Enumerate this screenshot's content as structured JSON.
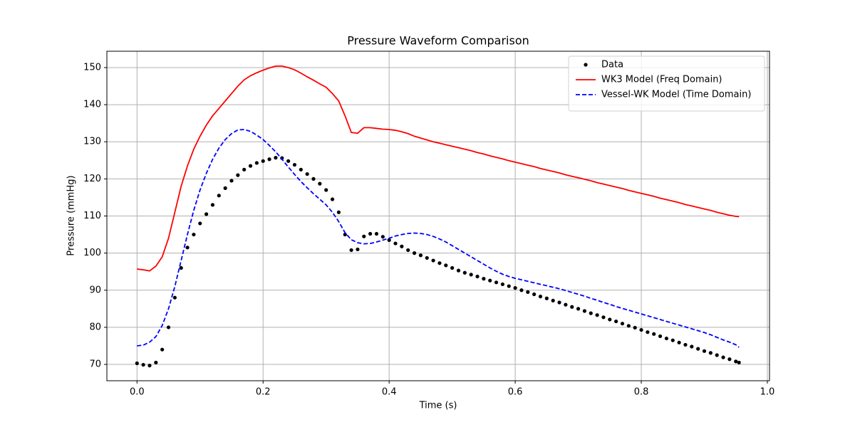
{
  "chart_data": {
    "type": "line",
    "title": "Pressure Waveform Comparison",
    "x_label": "Time (s)",
    "y_label": "Pressure (mmHg)",
    "xlim": [
      -0.0478,
      1.0034
    ],
    "ylim": [
      65.6,
      154.4
    ],
    "xticks": [
      {
        "value": 0,
        "label": "0.0"
      },
      0.2,
      0.4,
      0.6,
      0.8,
      {
        "value": 1,
        "label": "1.0"
      }
    ],
    "yticks": [
      70,
      80,
      90,
      100,
      110,
      120,
      130,
      140,
      150
    ],
    "grid": true,
    "legend": "upper right",
    "x": [
      0,
      0.01,
      0.02,
      0.03,
      0.04,
      0.05,
      0.06,
      0.07,
      0.08,
      0.09,
      0.1,
      0.11,
      0.12,
      0.13,
      0.14,
      0.15,
      0.16,
      0.17,
      0.18,
      0.19,
      0.2,
      0.21,
      0.22,
      0.23,
      0.24,
      0.25,
      0.26,
      0.27,
      0.28,
      0.29,
      0.3,
      0.31,
      0.32,
      0.33,
      0.34,
      0.35,
      0.36,
      0.37,
      0.38,
      0.39,
      0.4,
      0.41,
      0.42,
      0.43,
      0.44,
      0.45,
      0.46,
      0.47,
      0.48,
      0.49,
      0.5,
      0.51,
      0.52,
      0.53,
      0.54,
      0.55,
      0.56,
      0.57,
      0.58,
      0.59,
      0.6,
      0.61,
      0.62,
      0.63,
      0.64,
      0.65,
      0.66,
      0.67,
      0.68,
      0.69,
      0.7,
      0.71,
      0.72,
      0.73,
      0.74,
      0.75,
      0.76,
      0.77,
      0.78,
      0.79,
      0.8,
      0.81,
      0.82,
      0.83,
      0.84,
      0.85,
      0.86,
      0.87,
      0.88,
      0.89,
      0.9,
      0.91,
      0.92,
      0.93,
      0.94,
      0.95,
      0.955
    ],
    "series": [
      {
        "name": "Data",
        "color": "#000000",
        "linestyle": "none",
        "marker": "circle",
        "values": [
          70.3,
          69.9,
          69.7,
          70.5,
          74,
          80,
          88,
          96,
          101.5,
          105,
          108,
          110.5,
          113,
          115.5,
          117.5,
          119.5,
          121,
          122.5,
          123.5,
          124.3,
          124.8,
          125.3,
          125.7,
          125.6,
          124.8,
          123.8,
          122.5,
          121.3,
          120,
          118.7,
          117,
          114.5,
          111,
          105,
          100.8,
          101,
          104.5,
          105.2,
          105.2,
          104.4,
          103.5,
          102.6,
          101.8,
          100.8,
          100,
          99.4,
          98.7,
          98,
          97.3,
          96.7,
          96,
          95.3,
          94.7,
          94.2,
          93.7,
          93.1,
          92.6,
          92.1,
          91.6,
          91.1,
          90.6,
          90,
          89.5,
          88.9,
          88.3,
          87.8,
          87.2,
          86.7,
          86.1,
          85.5,
          85,
          84.4,
          83.8,
          83.3,
          82.7,
          82.1,
          81.6,
          81,
          80.4,
          79.9,
          79.3,
          78.7,
          78.2,
          77.6,
          77,
          76.5,
          75.9,
          75.3,
          74.8,
          74.2,
          73.6,
          73.1,
          72.5,
          71.9,
          71.4,
          70.8,
          70.5
        ]
      },
      {
        "name": "WK3 Model (Freq Domain)",
        "color": "#ff0000",
        "linestyle": "solid",
        "marker": "none",
        "values": [
          95.7,
          95.5,
          95.2,
          96.5,
          99,
          104,
          111,
          118,
          123.5,
          128,
          131.5,
          134.5,
          137,
          139,
          141,
          143,
          145,
          146.7,
          147.8,
          148.6,
          149.3,
          149.9,
          150.4,
          150.4,
          150,
          149.4,
          148.5,
          147.5,
          146.6,
          145.6,
          144.7,
          143,
          141,
          137,
          132.5,
          132.3,
          133.8,
          133.8,
          133.6,
          133.4,
          133.3,
          133.1,
          132.7,
          132.2,
          131.5,
          131,
          130.5,
          130,
          129.6,
          129.2,
          128.8,
          128.4,
          128,
          127.6,
          127.1,
          126.7,
          126.2,
          125.8,
          125.4,
          124.9,
          124.5,
          124.1,
          123.7,
          123.3,
          122.8,
          122.4,
          122,
          121.6,
          121.1,
          120.7,
          120.3,
          119.9,
          119.5,
          119,
          118.6,
          118.2,
          117.8,
          117.4,
          116.9,
          116.5,
          116.1,
          115.7,
          115.3,
          114.8,
          114.4,
          114,
          113.6,
          113.1,
          112.7,
          112.3,
          111.9,
          111.5,
          111,
          110.6,
          110.2,
          109.9,
          109.8
        ]
      },
      {
        "name": "Vessel-WK Model (Time Domain)",
        "color": "#0000ff",
        "linestyle": "dashed",
        "marker": "none",
        "values": [
          75,
          75.2,
          76,
          77.5,
          80.5,
          85,
          91,
          98,
          105,
          111.5,
          117,
          121.5,
          125.3,
          128.3,
          130.6,
          132.2,
          133.2,
          133.3,
          132.8,
          131.8,
          130.6,
          129,
          127.3,
          125.3,
          123.2,
          121.2,
          119.3,
          117.6,
          116,
          114.5,
          113,
          111,
          108.5,
          105.5,
          103.6,
          102.8,
          102.5,
          102.6,
          103,
          103.5,
          104,
          104.6,
          105,
          105.3,
          105.4,
          105.3,
          105,
          104.5,
          103.8,
          103,
          102,
          101,
          100,
          99,
          98,
          97,
          96,
          95.1,
          94.3,
          93.7,
          93.2,
          92.8,
          92.4,
          92,
          91.6,
          91.2,
          90.8,
          90.4,
          89.9,
          89.4,
          88.9,
          88.4,
          87.8,
          87.3,
          86.7,
          86.2,
          85.6,
          85.1,
          84.6,
          84.1,
          83.6,
          83.1,
          82.6,
          82.1,
          81.6,
          81.1,
          80.6,
          80.1,
          79.6,
          79.1,
          78.6,
          78,
          77.3,
          76.6,
          76,
          75.3,
          74.6
        ]
      }
    ]
  }
}
